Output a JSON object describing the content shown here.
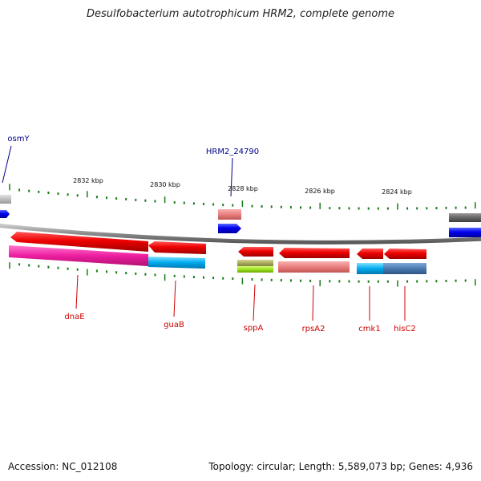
{
  "title": "Desulfobacterium autotrophicum HRM2, complete genome",
  "footer": {
    "accession": "Accession: NC_012108",
    "summary": "Topology: circular; Length: 5,589,073 bp; Genes: 4,936"
  },
  "scale_labels": [
    "2832 kbp",
    "2830 kbp",
    "2828 kbp",
    "2826 kbp",
    "2824 kbp"
  ],
  "genes": [
    {
      "label": "osmY",
      "color_hex": "#00008b",
      "direction": "forward"
    },
    {
      "label": "HRM2_24790",
      "color_hex": "#00008b",
      "direction": "forward"
    },
    {
      "label": "dnaE",
      "color_hex": "#cc0000",
      "direction": "reverse"
    },
    {
      "label": "guaB",
      "color_hex": "#cc0000",
      "direction": "reverse"
    },
    {
      "label": "sppA",
      "color_hex": "#cc0000",
      "direction": "reverse"
    },
    {
      "label": "rpsA2",
      "color_hex": "#cc0000",
      "direction": "reverse"
    },
    {
      "label": "cmk1",
      "color_hex": "#cc0000",
      "direction": "reverse"
    },
    {
      "label": "hisC2",
      "color_hex": "#cc0000",
      "direction": "reverse"
    }
  ],
  "colors": {
    "backbone": "#8a8a8a",
    "tick": "#1a7a1a",
    "forward_cds": "#0000ee",
    "reverse_cds": "#ee0000"
  }
}
